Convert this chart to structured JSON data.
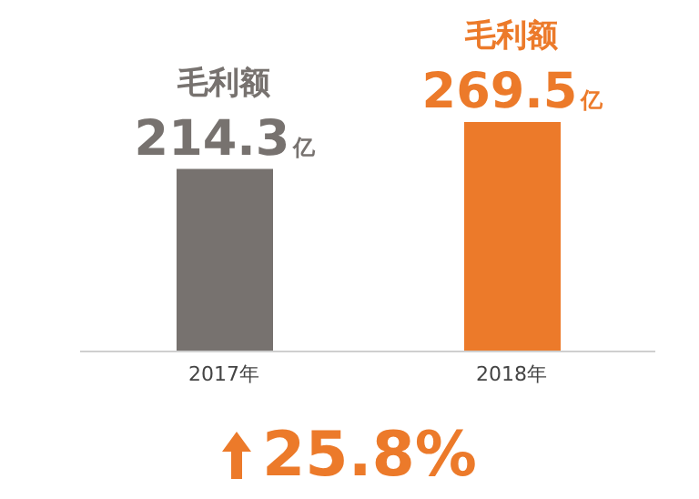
{
  "chart_data": {
    "type": "bar",
    "categories": [
      "2017年",
      "2018年"
    ],
    "values": [
      214.3,
      269.5
    ],
    "value_labels": [
      "214.3亿",
      "269.5亿"
    ],
    "colors": [
      "#77726f",
      "#ec7a2a"
    ],
    "tick_labels": "x",
    "grid": false,
    "legend": false,
    "annotations": [
      {
        "text": "毛利额",
        "x": "2017年",
        "y": 214.3
      },
      {
        "text": "毛利额",
        "x": "2018年",
        "y": 269.5
      },
      "25.8%"
    ]
  }
}
